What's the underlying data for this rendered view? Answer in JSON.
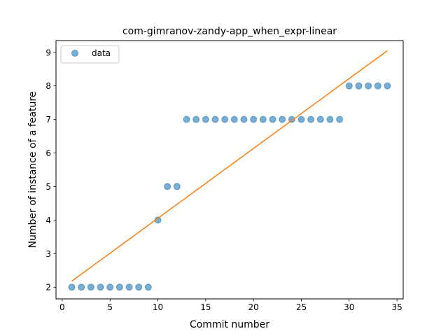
{
  "chart_data": {
    "type": "scatter",
    "title": "com-gimranov-zandy-app_when_expr-linear",
    "xlabel": "Commit number",
    "ylabel": "Number of instance of a feature",
    "xlim": [
      -0.65,
      35.65
    ],
    "ylim": [
      1.65,
      9.35
    ],
    "xticks": [
      0,
      5,
      10,
      15,
      20,
      25,
      30,
      35
    ],
    "yticks": [
      2,
      3,
      4,
      5,
      6,
      7,
      8,
      9
    ],
    "grid": false,
    "legend_placement": "top-left",
    "series": [
      {
        "name": "data",
        "kind": "scatter",
        "color": "#1f77b4",
        "opacity": 0.6,
        "x": [
          1,
          2,
          3,
          4,
          5,
          6,
          7,
          8,
          9,
          10,
          11,
          12,
          13,
          14,
          15,
          16,
          17,
          18,
          19,
          20,
          21,
          22,
          23,
          24,
          25,
          26,
          27,
          28,
          29,
          30,
          31,
          32,
          33,
          34
        ],
        "y": [
          2,
          2,
          2,
          2,
          2,
          2,
          2,
          2,
          2,
          4,
          5,
          5,
          7,
          7,
          7,
          7,
          7,
          7,
          7,
          7,
          7,
          7,
          7,
          7,
          7,
          7,
          7,
          7,
          7,
          8,
          8,
          8,
          8,
          8
        ]
      },
      {
        "kind": "line",
        "color": "#ff7f0e",
        "x": [
          1,
          34
        ],
        "y": [
          2.18,
          9.05
        ]
      }
    ]
  }
}
